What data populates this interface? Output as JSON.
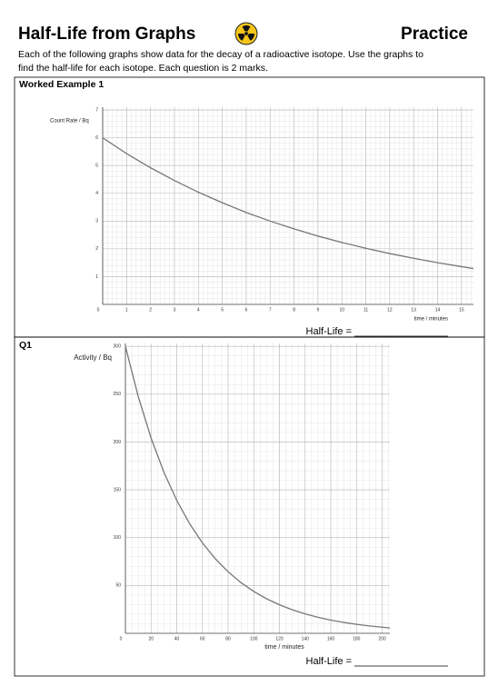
{
  "header": {
    "title": "Half-Life from Graphs",
    "tag": "Practice"
  },
  "instructions": [
    "Each of the following graphs show data for the decay of a radioactive isotope. Use the graphs to",
    "find the half-life for each isotope. Each question is 2 marks."
  ],
  "sections": [
    {
      "label": "Worked Example 1",
      "answer_label": "Half-Life ="
    },
    {
      "label": "Q1",
      "answer_label": "Half-Life ="
    }
  ],
  "chart_data": [
    {
      "type": "line",
      "ylabel": "Count Rate / Bq",
      "xlabel": "time / minutes",
      "x": [
        0,
        1,
        2,
        3,
        4,
        5,
        6,
        7,
        8,
        9,
        10,
        11,
        12,
        13,
        14,
        15,
        15.5
      ],
      "series": [
        {
          "color": "#777777",
          "values": [
            6,
            5.43,
            4.92,
            4.46,
            4.04,
            3.66,
            3.31,
            3.0,
            2.72,
            2.46,
            2.23,
            2.02,
            1.83,
            1.66,
            1.5,
            1.36,
            1.29
          ]
        }
      ],
      "xlim": [
        0,
        15.5
      ],
      "ylim": [
        0,
        7.1
      ],
      "xticks": [
        0,
        1,
        2,
        3,
        4,
        5,
        6,
        7,
        8,
        9,
        10,
        11,
        12,
        13,
        14,
        15
      ],
      "yticks": [
        1,
        2,
        3,
        4,
        5,
        6,
        7
      ],
      "grid": true
    },
    {
      "type": "line",
      "ylabel": "Activity / Bq",
      "xlabel": "time / minutes",
      "x": [
        0,
        10,
        20,
        30,
        40,
        50,
        60,
        70,
        80,
        90,
        100,
        110,
        120,
        130,
        140,
        150,
        160,
        170,
        180,
        190,
        200,
        206
      ],
      "series": [
        {
          "color": "#777777",
          "values": [
            300,
            247.5,
            204.1,
            168.4,
            138.9,
            114.6,
            94.5,
            78.0,
            64.3,
            53.0,
            43.8,
            36.1,
            29.8,
            24.6,
            20.3,
            16.7,
            13.8,
            11.4,
            9.4,
            7.7,
            6.4,
            5.6
          ]
        }
      ],
      "xlim": [
        0,
        206
      ],
      "ylim": [
        0,
        303
      ],
      "xticks": [
        0,
        20,
        40,
        60,
        80,
        100,
        120,
        140,
        160,
        180,
        200
      ],
      "yticks": [
        50,
        100,
        150,
        200,
        250,
        300
      ],
      "grid": true
    }
  ]
}
